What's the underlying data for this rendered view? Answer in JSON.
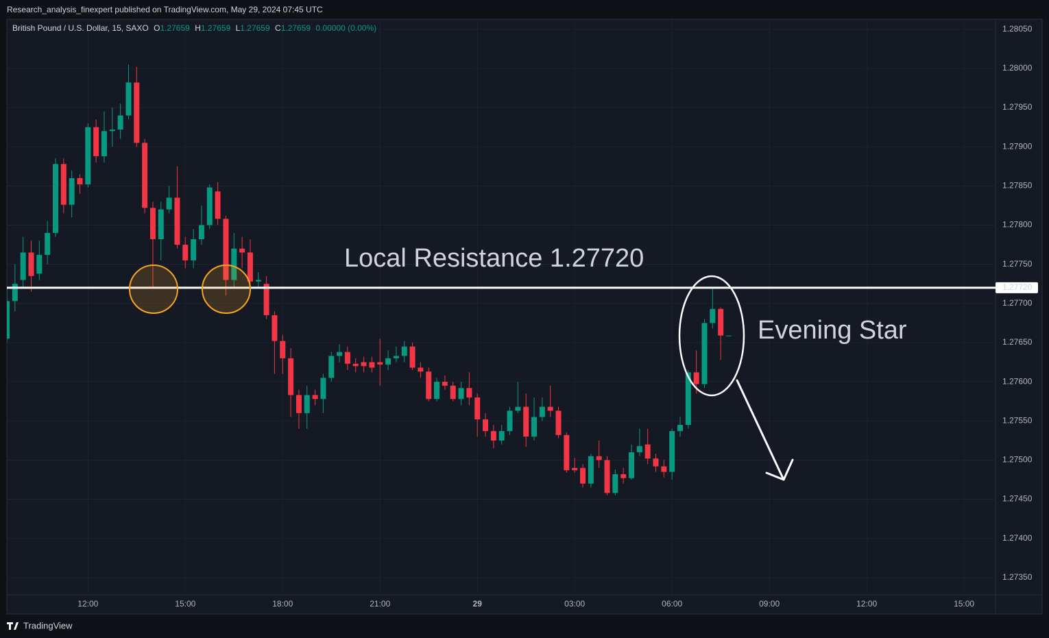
{
  "header": "Research_analysis_finexpert published on TradingView.com, May 29, 2024 07:45 UTC",
  "footer": "TradingView",
  "chart_data": {
    "type": "candlestick",
    "legend": {
      "symbol": "British Pound / U.S. Dollar, 15, SAXO",
      "o_label": "O",
      "o": "1.27659",
      "h_label": "H",
      "h": "1.27659",
      "l_label": "L",
      "l": "1.27659",
      "c_label": "C",
      "c": "1.27659",
      "change": "0.00000 (0.00%)"
    },
    "up_color": "#089981",
    "down_color": "#f23645",
    "x": [
      9.5,
      9.75,
      10,
      10.25,
      10.5,
      10.75,
      11,
      11.25,
      11.5,
      11.75,
      12,
      12.25,
      12.5,
      12.75,
      13,
      13.25,
      13.5,
      13.75,
      14,
      14.25,
      14.5,
      14.75,
      15,
      15.25,
      15.5,
      15.75,
      16,
      16.25,
      16.5,
      16.75,
      17,
      17.25,
      17.5,
      17.75,
      18,
      18.25,
      18.5,
      18.75,
      19,
      19.25,
      19.5,
      19.75,
      20,
      20.25,
      20.5,
      20.75,
      21,
      21.25,
      21.5,
      21.75,
      22,
      22.25,
      22.5,
      22.75,
      23,
      23.25,
      23.5,
      23.75,
      24,
      24.25,
      24.5,
      24.75,
      25,
      25.25,
      25.5,
      25.75,
      26,
      26.25,
      26.5,
      26.75,
      27,
      27.25,
      27.5,
      27.75,
      28,
      28.25,
      28.5,
      28.75,
      29,
      29.25,
      29.5,
      29.75,
      30,
      30.25,
      30.5,
      30.75,
      31,
      31.25,
      31.5,
      31.75
    ],
    "open": [
      1.27655,
      1.27703,
      1.2773,
      1.27765,
      1.27738,
      1.27762,
      1.2779,
      1.27878,
      1.27826,
      1.2786,
      1.27852,
      1.27925,
      1.27888,
      1.2792,
      1.27922,
      1.2794,
      1.27982,
      1.27905,
      1.27822,
      1.27782,
      1.2782,
      1.27835,
      1.27775,
      1.27755,
      1.27782,
      1.278,
      1.27843,
      1.27808,
      1.2773,
      1.2777,
      1.27765,
      1.27728,
      1.27725,
      1.27685,
      1.27652,
      1.2763,
      1.27583,
      1.2756,
      1.27583,
      1.27578,
      1.27605,
      1.27633,
      1.27638,
      1.27623,
      1.27625,
      1.27625,
      1.27625,
      1.27622,
      1.2763,
      1.27633,
      1.27645,
      1.27618,
      1.27613,
      1.27578,
      1.276,
      1.27595,
      1.27578,
      1.27592,
      1.2758,
      1.27552,
      1.27537,
      1.27525,
      1.27537,
      1.27563,
      1.27568,
      1.2753,
      1.27555,
      1.27568,
      1.27563,
      1.27532,
      1.2749,
      1.2749,
      1.2747,
      1.27505,
      1.275,
      1.27458,
      1.27482,
      1.27477,
      1.2751,
      1.2752,
      1.27502,
      1.27492,
      1.27485,
      1.27537,
      1.27545,
      1.27612,
      1.27597,
      1.27675,
      1.27693,
      1.27659
    ],
    "high": [
      1.2772,
      1.2775,
      1.27785,
      1.2778,
      1.2778,
      1.27805,
      1.27885,
      1.27885,
      1.2787,
      1.27865,
      1.2793,
      1.27935,
      1.27945,
      1.2795,
      1.27955,
      1.28005,
      1.28002,
      1.2791,
      1.2783,
      1.2783,
      1.2785,
      1.27875,
      1.27785,
      1.27795,
      1.27825,
      1.27852,
      1.27855,
      1.27812,
      1.2779,
      1.27785,
      1.27782,
      1.2774,
      1.27735,
      1.2769,
      1.2766,
      1.27643,
      1.2759,
      1.27595,
      1.2759,
      1.2761,
      1.27638,
      1.27648,
      1.27645,
      1.2763,
      1.27632,
      1.27632,
      1.27655,
      1.2764,
      1.27645,
      1.27652,
      1.2765,
      1.27625,
      1.27618,
      1.27605,
      1.27608,
      1.276,
      1.276,
      1.27612,
      1.27585,
      1.2756,
      1.27545,
      1.27545,
      1.27568,
      1.276,
      1.27585,
      1.2758,
      1.2758,
      1.27595,
      1.27568,
      1.27535,
      1.27503,
      1.27495,
      1.27508,
      1.27525,
      1.27505,
      1.27488,
      1.2749,
      1.2752,
      1.2754,
      1.2754,
      1.27508,
      1.275,
      1.2754,
      1.27555,
      1.27615,
      1.2764,
      1.2768,
      1.2772,
      1.27695,
      1.27659
    ],
    "low": [
      1.2765,
      1.2769,
      1.2772,
      1.27715,
      1.2773,
      1.2775,
      1.27785,
      1.27815,
      1.2781,
      1.2784,
      1.27848,
      1.2788,
      1.2788,
      1.279,
      1.2791,
      1.27935,
      1.279,
      1.27815,
      1.2772,
      1.27755,
      1.27815,
      1.2777,
      1.27745,
      1.27745,
      1.27775,
      1.27795,
      1.278,
      1.2771,
      1.2772,
      1.27745,
      1.27715,
      1.2772,
      1.2768,
      1.2761,
      1.2761,
      1.27555,
      1.2754,
      1.2754,
      1.2757,
      1.2756,
      1.276,
      1.27625,
      1.27615,
      1.27612,
      1.27612,
      1.27612,
      1.27595,
      1.27615,
      1.27625,
      1.27625,
      1.27615,
      1.27605,
      1.27575,
      1.27575,
      1.2759,
      1.27575,
      1.2757,
      1.2757,
      1.2753,
      1.2753,
      1.27515,
      1.2752,
      1.27532,
      1.2756,
      1.27517,
      1.27525,
      1.2755,
      1.27555,
      1.27528,
      1.27484,
      1.27484,
      1.27465,
      1.27465,
      1.2749,
      1.27455,
      1.27455,
      1.2747,
      1.27475,
      1.27505,
      1.27495,
      1.27485,
      1.27478,
      1.27475,
      1.2753,
      1.2754,
      1.27585,
      1.27592,
      1.27668,
      1.27628,
      1.27659
    ],
    "close": [
      1.27703,
      1.27725,
      1.27765,
      1.27735,
      1.27762,
      1.2779,
      1.27878,
      1.27826,
      1.2786,
      1.27852,
      1.27925,
      1.27888,
      1.2792,
      1.27922,
      1.2794,
      1.27982,
      1.27905,
      1.27822,
      1.27782,
      1.2782,
      1.27835,
      1.27775,
      1.27755,
      1.27782,
      1.278,
      1.27848,
      1.27808,
      1.2773,
      1.2777,
      1.27765,
      1.27728,
      1.2773,
      1.27685,
      1.27652,
      1.2763,
      1.27583,
      1.2756,
      1.27583,
      1.27578,
      1.27605,
      1.27633,
      1.27638,
      1.27623,
      1.2762,
      1.2762,
      1.27618,
      1.27622,
      1.2763,
      1.27633,
      1.27645,
      1.27618,
      1.27613,
      1.27578,
      1.276,
      1.27595,
      1.27578,
      1.27592,
      1.2758,
      1.27552,
      1.27537,
      1.27525,
      1.27537,
      1.27563,
      1.27568,
      1.2753,
      1.27555,
      1.27568,
      1.27563,
      1.27532,
      1.27487,
      1.27487,
      1.2747,
      1.27505,
      1.275,
      1.27458,
      1.27482,
      1.27477,
      1.2751,
      1.27518,
      1.27502,
      1.27492,
      1.27485,
      1.27537,
      1.27545,
      1.27612,
      1.27597,
      1.27675,
      1.27693,
      1.27659,
      1.27659
    ],
    "xlim": [
      9.5,
      39.97
    ],
    "xticks": [
      {
        "value": 12,
        "label": "12:00"
      },
      {
        "value": 15,
        "label": "15:00"
      },
      {
        "value": 18,
        "label": "18:00"
      },
      {
        "value": 21,
        "label": "21:00"
      },
      {
        "value": 24,
        "label": "29"
      },
      {
        "value": 27,
        "label": "03:00"
      },
      {
        "value": 30,
        "label": "06:00"
      },
      {
        "value": 33,
        "label": "09:00"
      },
      {
        "value": 36,
        "label": "12:00"
      },
      {
        "value": 39,
        "label": "15:00"
      }
    ],
    "ylim": [
      1.27328,
      1.28062
    ],
    "yticks": [
      {
        "value": 1.2735,
        "label": "1.27350"
      },
      {
        "value": 1.274,
        "label": "1.27400"
      },
      {
        "value": 1.2745,
        "label": "1.27450"
      },
      {
        "value": 1.275,
        "label": "1.27500"
      },
      {
        "value": 1.2755,
        "label": "1.27550"
      },
      {
        "value": 1.276,
        "label": "1.27600"
      },
      {
        "value": 1.2765,
        "label": "1.27650"
      },
      {
        "value": 1.277,
        "label": "1.27700"
      },
      {
        "value": 1.2775,
        "label": "1.27750"
      },
      {
        "value": 1.278,
        "label": "1.27800"
      },
      {
        "value": 1.2785,
        "label": "1.27850"
      },
      {
        "value": 1.279,
        "label": "1.27900"
      },
      {
        "value": 1.2795,
        "label": "1.27950"
      },
      {
        "value": 1.28,
        "label": "1.28000"
      },
      {
        "value": 1.2805,
        "label": "1.28050"
      }
    ],
    "grid": true,
    "hlines": [
      {
        "value": 1.2772,
        "label": "1.27720",
        "color": "#ffffff"
      }
    ],
    "annotations": [
      {
        "text": "Local Resistance 1.27720"
      },
      {
        "text": "Evening Star"
      }
    ]
  }
}
